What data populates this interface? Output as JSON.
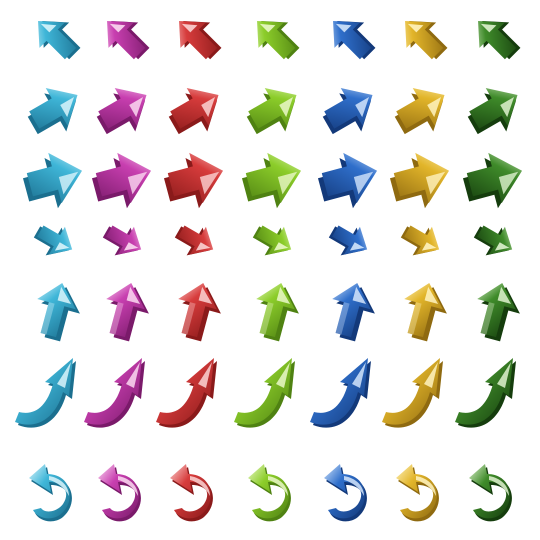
{
  "palette": [
    {
      "name": "cyan",
      "light": "#d9f4fb",
      "mid": "#3fb6d8",
      "dark": "#1b6f8f"
    },
    {
      "name": "magenta",
      "light": "#fbd9f1",
      "mid": "#c83fb0",
      "dark": "#7a1a6a"
    },
    {
      "name": "red",
      "light": "#fbd3d3",
      "mid": "#d73c3c",
      "dark": "#8a1a1a"
    },
    {
      "name": "green",
      "light": "#eaf8c8",
      "mid": "#8ccd2a",
      "dark": "#4f8212"
    },
    {
      "name": "blue",
      "light": "#d3e5fb",
      "mid": "#2f6fcb",
      "dark": "#13397a"
    },
    {
      "name": "gold",
      "light": "#fff3bf",
      "mid": "#e2b52a",
      "dark": "#8f6a10"
    },
    {
      "name": "darkgreen",
      "light": "#dff2cf",
      "mid": "#3f8b2a",
      "dark": "#153d0d"
    }
  ],
  "rows": [
    {
      "style": "arrow-upleft-flat"
    },
    {
      "style": "arrow-upright-block"
    },
    {
      "style": "arrow-right-chunky"
    },
    {
      "style": "arrow-downright-small"
    },
    {
      "style": "arrow-up-3d"
    },
    {
      "style": "arrow-curved-up"
    },
    {
      "style": "arrow-hook"
    }
  ]
}
